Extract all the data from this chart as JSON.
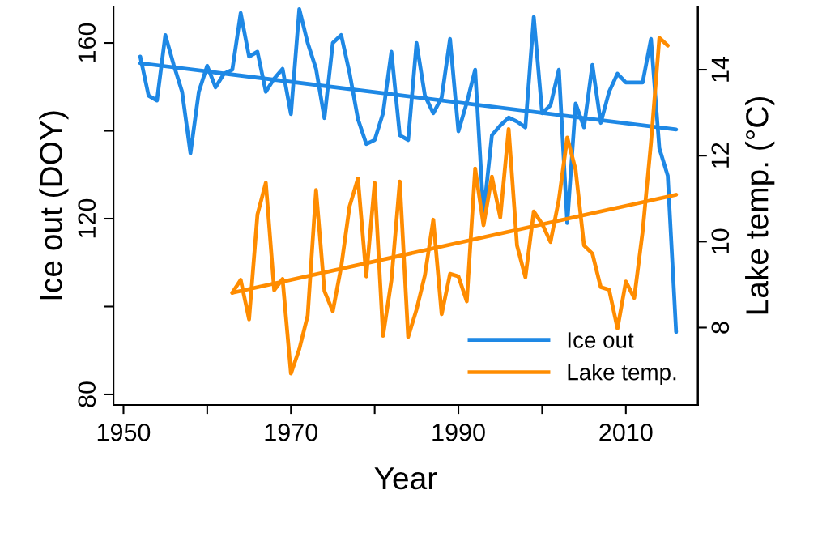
{
  "chart_data": {
    "type": "line",
    "xlabel": "Year",
    "ylabel": "Ice out (DOY)",
    "y2label": "Lake temp. (°C)",
    "xlim": [
      1948.8,
      2018.6
    ],
    "xticks": [
      1950,
      {
        "value": 1960,
        "label": null
      },
      1970,
      {
        "value": 1980,
        "label": null
      },
      1990,
      {
        "value": 2000,
        "label": null
      },
      2010
    ],
    "ylim": [
      77.6,
      168.3
    ],
    "yticks": [
      80,
      {
        "value": 100,
        "label": null
      },
      120,
      {
        "value": 140,
        "label": null
      },
      160
    ],
    "y2lim": [
      6.2,
      15.47
    ],
    "y2ticks": [
      8,
      10,
      12,
      14
    ],
    "grid": false,
    "legend": "bottom right",
    "line_style": "solid",
    "marker": "none",
    "series": [
      {
        "name": "Ice out",
        "color": "#1e88e5",
        "x": [
          1952,
          1953,
          1954,
          1955,
          1956,
          1957,
          1958,
          1959,
          1960,
          1961,
          1962,
          1963,
          1964,
          1965,
          1966,
          1967,
          1968,
          1969,
          1970,
          1971,
          1972,
          1973,
          1974,
          1975,
          1976,
          1977,
          1978,
          1979,
          1980,
          1981,
          1982,
          1983,
          1984,
          1985,
          1986,
          1987,
          1988,
          1989,
          1990,
          1991,
          1992,
          1993,
          1994,
          1995,
          1996,
          1997,
          1998,
          1999,
          2000,
          2001,
          2002,
          2003,
          2004,
          2005,
          2006,
          2007,
          2008,
          2009,
          2010,
          2011,
          2012,
          2013,
          2014,
          2015,
          2016
        ],
        "values": [
          156.9,
          148.0,
          146.9,
          161.8,
          155.0,
          148.9,
          134.9,
          148.9,
          154.8,
          149.9,
          153.0,
          153.9,
          166.8,
          156.9,
          158.0,
          148.9,
          151.9,
          154.1,
          143.8,
          167.7,
          160.0,
          154.1,
          142.9,
          160.0,
          161.8,
          153.2,
          142.7,
          137.0,
          137.9,
          144.0,
          158.0,
          139.0,
          137.9,
          160.0,
          148.0,
          144.0,
          147.6,
          160.9,
          139.9,
          146.4,
          153.9,
          121,
          139.0,
          141.2,
          143.0,
          142.1,
          140.8,
          165.9,
          144.0,
          145.8,
          153.9,
          119,
          146.2,
          140.8,
          155.0,
          141.8,
          148.9,
          153.0,
          151.0,
          151.0,
          151.0,
          160.9,
          136.0,
          129.8,
          94.2
        ]
      },
      {
        "name": "Lake temp.",
        "color": "#ff8c00",
        "axis": "y2",
        "x": [
          1963,
          1964,
          1965,
          1966,
          1967,
          1968,
          1969,
          1970,
          1971,
          1972,
          1973,
          1974,
          1975,
          1976,
          1977,
          1978,
          1979,
          1980,
          1981,
          1982,
          1983,
          1984,
          1985,
          1986,
          1987,
          1988,
          1989,
          1990,
          1991,
          1992,
          1993,
          1994,
          1995,
          1996,
          1997,
          1998,
          1999,
          2000,
          2001,
          2002,
          2003,
          2004,
          2005,
          2006,
          2007,
          2008,
          2009,
          2010,
          2011,
          2012,
          2013,
          2014,
          2015
        ],
        "values": [
          8.81,
          9.11,
          8.19,
          10.63,
          11.37,
          8.87,
          9.13,
          6.93,
          7.5,
          8.28,
          11.2,
          8.85,
          8.38,
          9.41,
          10.82,
          11.47,
          9.19,
          11.37,
          7.81,
          9.1,
          11.4,
          7.78,
          8.42,
          9.22,
          10.51,
          8.31,
          9.25,
          9.19,
          8.61,
          11.7,
          10.38,
          11.51,
          10.56,
          12.62,
          9.91,
          9.17,
          10.7,
          10.41,
          9.99,
          10.98,
          12.42,
          11.67,
          9.91,
          9.72,
          8.94,
          8.88,
          7.98,
          9.07,
          8.69,
          10.23,
          12.3,
          14.74,
          14.56
        ]
      },
      {
        "color": "#1e88e5",
        "x": [
          1952,
          2016
        ],
        "values": [
          155.4,
          140.3
        ]
      },
      {
        "color": "#ff8c00",
        "axis": "y2",
        "x": [
          1963,
          2016
        ],
        "values": [
          8.81,
          11.09
        ]
      }
    ]
  }
}
